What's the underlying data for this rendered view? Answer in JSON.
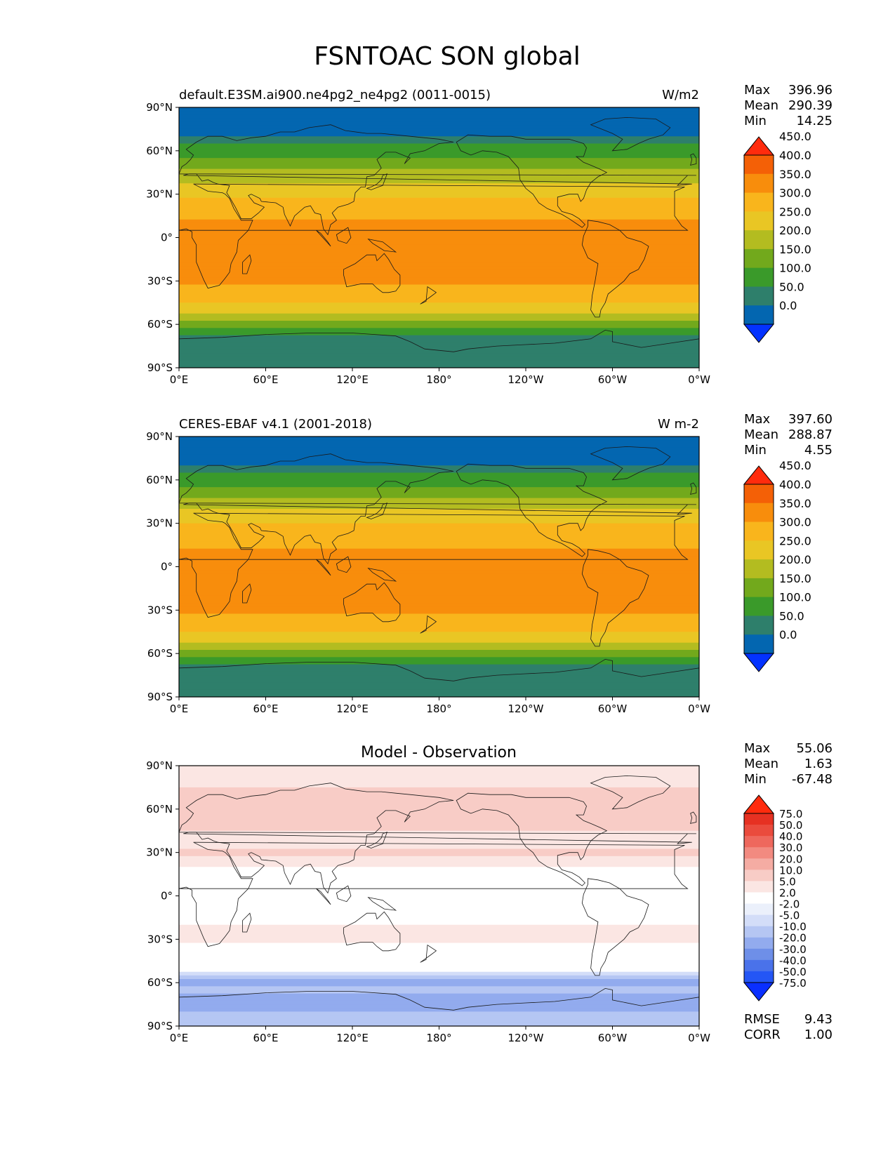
{
  "figure": {
    "title": "FSNTOAC SON global"
  },
  "chart_data": [
    {
      "type": "heatmap",
      "name": "test",
      "left_title": "default.E3SM.ai900.ne4pg2_ne4pg2 (0011-0015)",
      "center_title": "",
      "right_title": "W/m2",
      "x_ticks": [
        "0°E",
        "60°E",
        "120°E",
        "180°",
        "120°W",
        "60°W",
        "0°W"
      ],
      "y_ticks": [
        "90°N",
        "60°N",
        "30°N",
        "0°",
        "30°S",
        "60°S",
        "90°S"
      ],
      "xlim": [
        0,
        360
      ],
      "ylim": [
        -90,
        90
      ],
      "stats": [
        {
          "label": "Max",
          "value": "396.96"
        },
        {
          "label": "Mean",
          "value": "290.39"
        },
        {
          "label": "Min",
          "value": "14.25"
        }
      ],
      "colorbar": {
        "levels": [
          "0.0",
          "50.0",
          "100.0",
          "150.0",
          "200.0",
          "250.0",
          "300.0",
          "350.0",
          "400.0",
          "450.0"
        ],
        "colors": [
          "#0332ff",
          "#0366b0",
          "#2e7f6b",
          "#3a9a2a",
          "#72a91c",
          "#b3bc20",
          "#e9c624",
          "#f9b51c",
          "#f88d0c",
          "#f46006",
          "#ff2b0d"
        ],
        "extend": "both"
      },
      "zonal_profile": [
        {
          "lat": 90,
          "value": 0
        },
        {
          "lat": 80,
          "value": 0
        },
        {
          "lat": 75,
          "value": 0
        },
        {
          "lat": 70,
          "value": 50
        },
        {
          "lat": 65,
          "value": 100
        },
        {
          "lat": 60,
          "value": 115
        },
        {
          "lat": 55,
          "value": 150
        },
        {
          "lat": 50,
          "value": 180
        },
        {
          "lat": 45,
          "value": 210
        },
        {
          "lat": 40,
          "value": 240
        },
        {
          "lat": 35,
          "value": 265
        },
        {
          "lat": 30,
          "value": 290
        },
        {
          "lat": 25,
          "value": 310
        },
        {
          "lat": 20,
          "value": 325
        },
        {
          "lat": 15,
          "value": 340
        },
        {
          "lat": 10,
          "value": 355
        },
        {
          "lat": 0,
          "value": 360
        },
        {
          "lat": -10,
          "value": 365
        },
        {
          "lat": -20,
          "value": 365
        },
        {
          "lat": -30,
          "value": 355
        },
        {
          "lat": -35,
          "value": 340
        },
        {
          "lat": -40,
          "value": 320
        },
        {
          "lat": -45,
          "value": 295
        },
        {
          "lat": -50,
          "value": 270
        },
        {
          "lat": -55,
          "value": 225
        },
        {
          "lat": -60,
          "value": 175
        },
        {
          "lat": -63,
          "value": 140
        },
        {
          "lat": -66,
          "value": 110
        },
        {
          "lat": -70,
          "value": 75
        },
        {
          "lat": -90,
          "value": 75
        }
      ]
    },
    {
      "type": "heatmap",
      "name": "reference",
      "left_title": "CERES-EBAF v4.1 (2001-2018)",
      "center_title": "",
      "right_title": "W m-2",
      "x_ticks": [
        "0°E",
        "60°E",
        "120°E",
        "180°",
        "120°W",
        "60°W",
        "0°W"
      ],
      "y_ticks": [
        "90°N",
        "60°N",
        "30°N",
        "0°",
        "30°S",
        "60°S",
        "90°S"
      ],
      "xlim": [
        0,
        360
      ],
      "ylim": [
        -90,
        90
      ],
      "stats": [
        {
          "label": "Max",
          "value": "397.60"
        },
        {
          "label": "Mean",
          "value": "288.87"
        },
        {
          "label": "Min",
          "value": "4.55"
        }
      ],
      "colorbar": {
        "levels": [
          "0.0",
          "50.0",
          "100.0",
          "150.0",
          "200.0",
          "250.0",
          "300.0",
          "350.0",
          "400.0",
          "450.0"
        ],
        "colors": [
          "#0332ff",
          "#0366b0",
          "#2e7f6b",
          "#3a9a2a",
          "#72a91c",
          "#b3bc20",
          "#e9c624",
          "#f9b51c",
          "#f88d0c",
          "#f46006",
          "#ff2b0d"
        ],
        "extend": "both"
      },
      "zonal_profile": [
        {
          "lat": 90,
          "value": 0
        },
        {
          "lat": 80,
          "value": 0
        },
        {
          "lat": 75,
          "value": 0
        },
        {
          "lat": 70,
          "value": 55
        },
        {
          "lat": 65,
          "value": 100
        },
        {
          "lat": 60,
          "value": 120
        },
        {
          "lat": 55,
          "value": 155
        },
        {
          "lat": 50,
          "value": 185
        },
        {
          "lat": 45,
          "value": 215
        },
        {
          "lat": 40,
          "value": 245
        },
        {
          "lat": 35,
          "value": 270
        },
        {
          "lat": 30,
          "value": 295
        },
        {
          "lat": 25,
          "value": 315
        },
        {
          "lat": 20,
          "value": 330
        },
        {
          "lat": 15,
          "value": 345
        },
        {
          "lat": 10,
          "value": 355
        },
        {
          "lat": 0,
          "value": 360
        },
        {
          "lat": -10,
          "value": 365
        },
        {
          "lat": -20,
          "value": 362
        },
        {
          "lat": -30,
          "value": 355
        },
        {
          "lat": -35,
          "value": 345
        },
        {
          "lat": -40,
          "value": 325
        },
        {
          "lat": -45,
          "value": 300
        },
        {
          "lat": -50,
          "value": 275
        },
        {
          "lat": -55,
          "value": 230
        },
        {
          "lat": -60,
          "value": 170
        },
        {
          "lat": -63,
          "value": 140
        },
        {
          "lat": -66,
          "value": 110
        },
        {
          "lat": -70,
          "value": 75
        },
        {
          "lat": -90,
          "value": 75
        }
      ]
    },
    {
      "type": "heatmap",
      "name": "difference",
      "left_title": "",
      "center_title": "Model - Observation",
      "right_title": "",
      "x_ticks": [
        "0°E",
        "60°E",
        "120°E",
        "180°",
        "120°W",
        "60°W",
        "0°W"
      ],
      "y_ticks": [
        "90°N",
        "60°N",
        "30°N",
        "0°",
        "30°S",
        "60°S",
        "90°S"
      ],
      "xlim": [
        0,
        360
      ],
      "ylim": [
        -90,
        90
      ],
      "stats": [
        {
          "label": "Max",
          "value": "55.06"
        },
        {
          "label": "Mean",
          "value": "1.63"
        },
        {
          "label": "Min",
          "value": "-67.48"
        }
      ],
      "bottom_stats": [
        {
          "label": "RMSE",
          "value": "9.43"
        },
        {
          "label": "CORR",
          "value": "1.00"
        }
      ],
      "colorbar": {
        "levels": [
          "-75.0",
          "-50.0",
          "-40.0",
          "-30.0",
          "-20.0",
          "-10.0",
          "-5.0",
          "-2.0",
          "2.0",
          "5.0",
          "10.0",
          "20.0",
          "30.0",
          "40.0",
          "50.0",
          "75.0"
        ],
        "colors": [
          "#0a2fff",
          "#2456f5",
          "#4a72ea",
          "#6e8fe8",
          "#92abee",
          "#b5c6f3",
          "#d3ddf8",
          "#ebf0fb",
          "#ffffff",
          "#fbe6e3",
          "#f8ccc6",
          "#f5aca3",
          "#f28a80",
          "#ee685d",
          "#ea4b3d",
          "#e63122",
          "#ff2b0d"
        ],
        "extend": "both"
      },
      "zonal_profile": [
        {
          "lat": 90,
          "value": 3
        },
        {
          "lat": 80,
          "value": 4
        },
        {
          "lat": 70,
          "value": 6
        },
        {
          "lat": 60,
          "value": 8
        },
        {
          "lat": 50,
          "value": 7
        },
        {
          "lat": 40,
          "value": 3
        },
        {
          "lat": 30,
          "value": 6
        },
        {
          "lat": 20,
          "value": 2
        },
        {
          "lat": 10,
          "value": 0
        },
        {
          "lat": 0,
          "value": 0
        },
        {
          "lat": -10,
          "value": 1
        },
        {
          "lat": -20,
          "value": 2
        },
        {
          "lat": -30,
          "value": 3
        },
        {
          "lat": -40,
          "value": 0
        },
        {
          "lat": -45,
          "value": -2
        },
        {
          "lat": -50,
          "value": 3
        },
        {
          "lat": -55,
          "value": -8
        },
        {
          "lat": -60,
          "value": -30
        },
        {
          "lat": -65,
          "value": -15
        },
        {
          "lat": -70,
          "value": -25
        },
        {
          "lat": -80,
          "value": -20
        },
        {
          "lat": -90,
          "value": -18
        }
      ]
    }
  ]
}
